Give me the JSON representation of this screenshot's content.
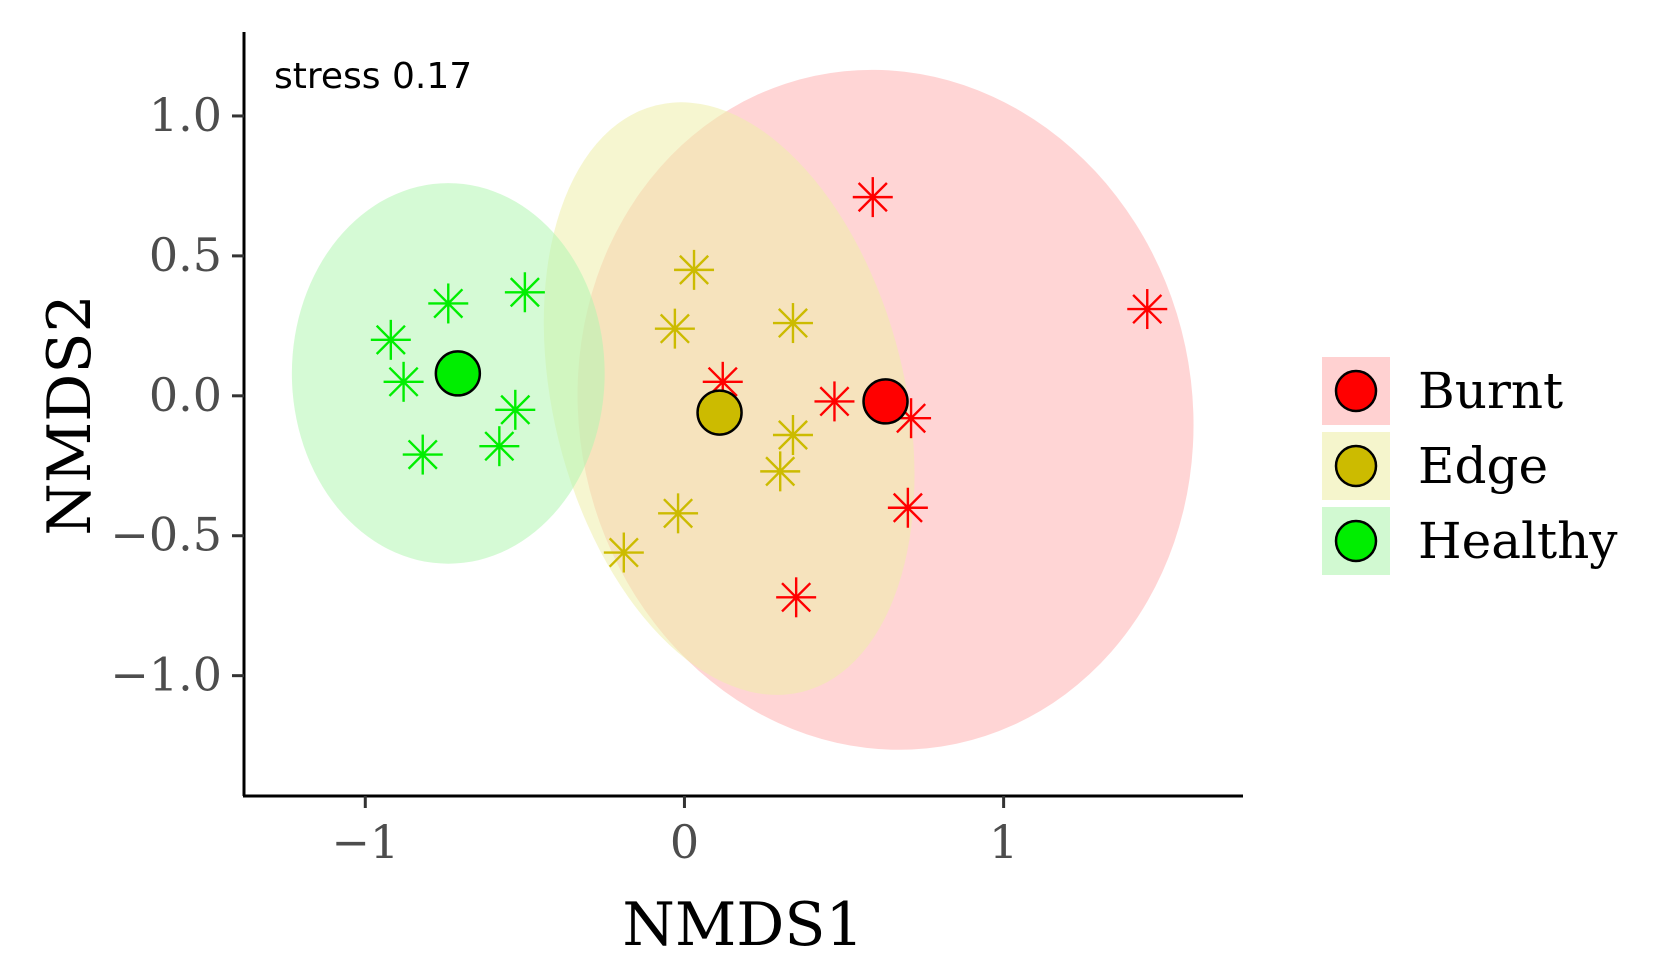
{
  "chart_data": {
    "type": "scatter",
    "xlabel": "NMDS1",
    "ylabel": "NMDS2",
    "annotation": "stress 0.17",
    "xlim": [
      -1.38,
      1.75
    ],
    "ylim": [
      -1.43,
      1.3
    ],
    "x_ticks": [
      -1,
      0,
      1
    ],
    "x_tick_labels": [
      "−1",
      "0",
      "1"
    ],
    "y_ticks": [
      1.0,
      0.5,
      0.0,
      -0.5,
      -1.0
    ],
    "y_tick_labels": [
      "1.0",
      "0.5",
      "0.0",
      "−0.5",
      "−1.0"
    ],
    "grid": false,
    "legend_position": "right",
    "series": [
      {
        "name": "Burnt",
        "color": "#ff0000",
        "fill_color": "#ffb3b3",
        "centroid": [
          0.63,
          -0.02
        ],
        "points": [
          [
            0.59,
            0.71
          ],
          [
            1.45,
            0.31
          ],
          [
            0.12,
            0.05
          ],
          [
            0.47,
            -0.02
          ],
          [
            0.71,
            -0.08
          ],
          [
            0.7,
            -0.4
          ],
          [
            0.35,
            -0.72
          ]
        ],
        "ellipse": {
          "cx": 0.63,
          "cy": -0.05,
          "rx": 0.96,
          "ry": 1.22,
          "angle_deg": -12
        }
      },
      {
        "name": "Edge",
        "color": "#ccbb00",
        "fill_color": "#eeeeaa",
        "centroid": [
          0.11,
          -0.06
        ],
        "points": [
          [
            0.03,
            0.45
          ],
          [
            -0.03,
            0.24
          ],
          [
            0.34,
            0.26
          ],
          [
            0.34,
            -0.14
          ],
          [
            0.3,
            -0.27
          ],
          [
            -0.02,
            -0.42
          ],
          [
            -0.19,
            -0.56
          ]
        ],
        "ellipse": {
          "cx": 0.14,
          "cy": -0.01,
          "rx": 0.55,
          "ry": 1.08,
          "angle_deg": -14
        }
      },
      {
        "name": "Healthy",
        "color": "#00ee00",
        "fill_color": "#b3f5b3",
        "centroid": [
          -0.71,
          0.08
        ],
        "points": [
          [
            -0.5,
            0.37
          ],
          [
            -0.74,
            0.33
          ],
          [
            -0.92,
            0.2
          ],
          [
            -0.88,
            0.05
          ],
          [
            -0.53,
            -0.05
          ],
          [
            -0.58,
            -0.18
          ],
          [
            -0.82,
            -0.21
          ]
        ],
        "ellipse": {
          "cx": -0.74,
          "cy": 0.08,
          "rx": 0.49,
          "ry": 0.68,
          "angle_deg": 0
        }
      }
    ]
  }
}
